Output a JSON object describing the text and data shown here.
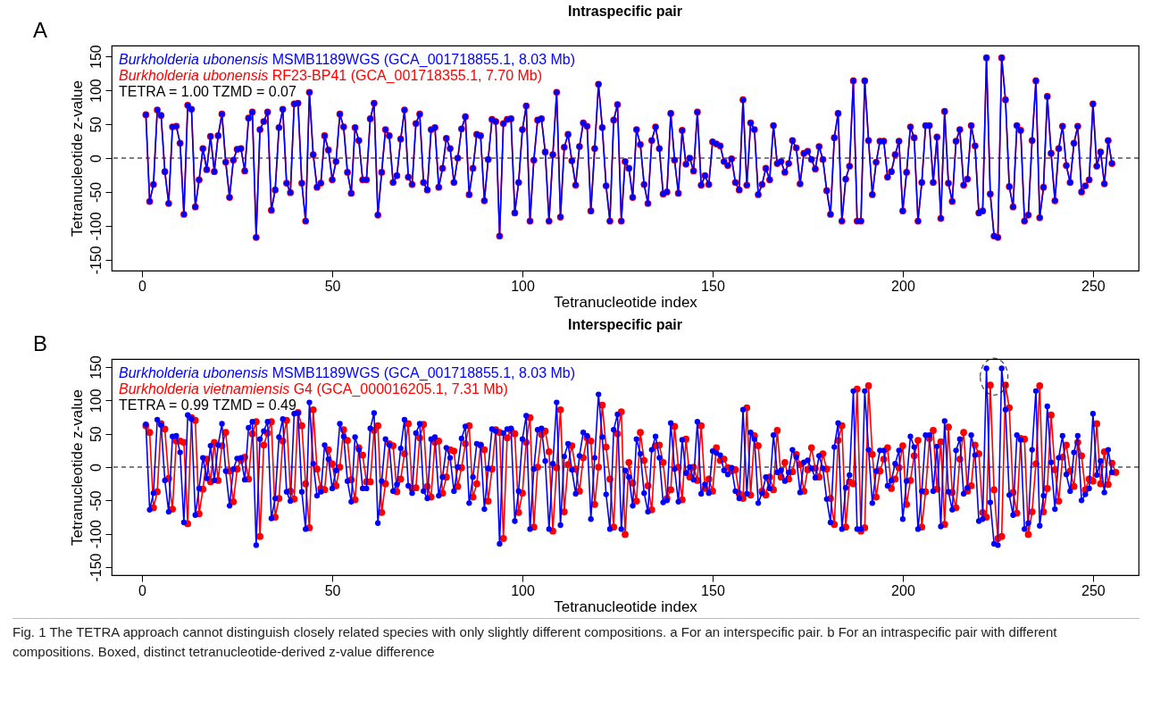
{
  "chart_data": [
    {
      "type": "line",
      "title": "Intraspecific pair",
      "xlabel": "Tetranucleotide index",
      "ylabel": "Tetranucleotide z-value",
      "xlim": [
        -8,
        262
      ],
      "ylim": [
        -166,
        166
      ],
      "xticks": [
        0,
        50,
        100,
        150,
        200,
        250
      ],
      "yticks": [
        -150,
        -100,
        -50,
        0,
        50,
        100,
        150
      ],
      "grid": false,
      "legend": "top left",
      "marker": "circle",
      "line_style": "solid",
      "annotations": [
        "A",
        "TETRA = 1.00    TZMD = 0.07"
      ],
      "ref_lines": [
        {
          "axis": "y",
          "value": 0,
          "color": "#000000",
          "line_style": "dashed"
        }
      ],
      "x": [
        1,
        2,
        3,
        4,
        5,
        6,
        7,
        8,
        9,
        10,
        11,
        12,
        13,
        14,
        15,
        16,
        17,
        18,
        19,
        20,
        21,
        22,
        23,
        24,
        25,
        26,
        27,
        28,
        29,
        30,
        31,
        32,
        33,
        34,
        35,
        36,
        37,
        38,
        39,
        40,
        41,
        42,
        43,
        44,
        45,
        46,
        47,
        48,
        49,
        50,
        51,
        52,
        53,
        54,
        55,
        56,
        57,
        58,
        59,
        60,
        61,
        62,
        63,
        64,
        65,
        66,
        67,
        68,
        69,
        70,
        71,
        72,
        73,
        74,
        75,
        76,
        77,
        78,
        79,
        80,
        81,
        82,
        83,
        84,
        85,
        86,
        87,
        88,
        89,
        90,
        91,
        92,
        93,
        94,
        95,
        96,
        97,
        98,
        99,
        100,
        101,
        102,
        103,
        104,
        105,
        106,
        107,
        108,
        109,
        110,
        111,
        112,
        113,
        114,
        115,
        116,
        117,
        118,
        119,
        120,
        121,
        122,
        123,
        124,
        125,
        126,
        127,
        128,
        129,
        130,
        131,
        132,
        133,
        134,
        135,
        136,
        137,
        138,
        139,
        140,
        141,
        142,
        143,
        144,
        145,
        146,
        147,
        148,
        149,
        150,
        151,
        152,
        153,
        154,
        155,
        156,
        157,
        158,
        159,
        160,
        161,
        162,
        163,
        164,
        165,
        166,
        167,
        168,
        169,
        170,
        171,
        172,
        173,
        174,
        175,
        176,
        177,
        178,
        179,
        180,
        181,
        182,
        183,
        184,
        185,
        186,
        187,
        188,
        189,
        190,
        191,
        192,
        193,
        194,
        195,
        196,
        197,
        198,
        199,
        200,
        201,
        202,
        203,
        204,
        205,
        206,
        207,
        208,
        209,
        210,
        211,
        212,
        213,
        214,
        215,
        216,
        217,
        218,
        219,
        220,
        221,
        222,
        223,
        224,
        225,
        226,
        227,
        228,
        229,
        230,
        231,
        232,
        233,
        234,
        235,
        236,
        237,
        238,
        239,
        240,
        241,
        242,
        243,
        244,
        245,
        246,
        247,
        248,
        249,
        250,
        251,
        252,
        253,
        254,
        255
      ],
      "series": [
        {
          "name": "Burkholderia ubonensis MSMB1189WGS (GCA_001718855.1, 8.03 Mb)",
          "color": "#0000ff",
          "values": [
            64,
            -64,
            -39,
            71,
            63,
            -20,
            -67,
            46,
            47,
            22,
            -83,
            78,
            72,
            -72,
            -32,
            14,
            -17,
            32,
            -20,
            33,
            65,
            -6,
            -58,
            -3,
            13,
            14,
            -19,
            59,
            68,
            -117,
            42,
            54,
            68,
            -77,
            -47,
            45,
            72,
            -37,
            -51,
            80,
            81,
            -37,
            -93,
            97,
            5,
            -43,
            -37,
            33,
            12,
            -32,
            -5,
            65,
            46,
            -21,
            -52,
            45,
            26,
            -32,
            -32,
            58,
            81,
            -84,
            -21,
            42,
            33,
            -36,
            -26,
            28,
            71,
            -28,
            -39,
            51,
            65,
            -36,
            -47,
            42,
            45,
            -43,
            -15,
            29,
            14,
            -36,
            0,
            43,
            61,
            -54,
            -15,
            35,
            33,
            -63,
            -2,
            57,
            54,
            -115,
            51,
            57,
            58,
            -81,
            -36,
            42,
            77,
            -93,
            -3,
            56,
            58,
            9,
            -93,
            5,
            97,
            -87,
            16,
            35,
            -4,
            -40,
            17,
            52,
            47,
            -78,
            14,
            109,
            45,
            -41,
            -93,
            56,
            79,
            -93,
            -5,
            -15,
            -58,
            42,
            20,
            -39,
            -67,
            26,
            46,
            14,
            -53,
            -50,
            66,
            -3,
            -52,
            41,
            -9,
            0,
            -19,
            68,
            -40,
            -26,
            -39,
            24,
            21,
            18,
            -5,
            -11,
            -1,
            -36,
            -47,
            86,
            -40,
            52,
            42,
            -54,
            -39,
            -15,
            -32,
            48,
            -8,
            -5,
            -21,
            -8,
            26,
            15,
            -38,
            7,
            10,
            -2,
            -16,
            17,
            -2,
            -48,
            -83,
            30,
            66,
            -93,
            -31,
            -12,
            114,
            -93,
            -93,
            114,
            26,
            -54,
            -6,
            25,
            25,
            -28,
            -20,
            5,
            25,
            -78,
            -21,
            46,
            30,
            -93,
            -36,
            48,
            48,
            -36,
            31,
            -89,
            69,
            -37,
            -64,
            25,
            42,
            -40,
            -31,
            48,
            18,
            -81,
            -78,
            148,
            -53,
            -115,
            -117,
            148,
            86,
            -42,
            -72,
            48,
            41,
            -93,
            -84,
            26,
            114,
            -88,
            -43,
            91,
            7,
            -63,
            14,
            47,
            -11,
            -36,
            22,
            47,
            -50,
            -41,
            -32,
            80,
            -12,
            9,
            -38,
            26,
            -8
          ]
        },
        {
          "name": "Burkholderia ubonensis RF23-BP41 (GCA_001718355.1, 7.70 Mb)",
          "color": "#ff0000",
          "values": [
            64,
            -64,
            -39,
            71,
            63,
            -20,
            -67,
            46,
            47,
            22,
            -83,
            78,
            72,
            -72,
            -32,
            14,
            -17,
            32,
            -20,
            33,
            65,
            -6,
            -58,
            -3,
            13,
            14,
            -19,
            59,
            68,
            -117,
            42,
            54,
            68,
            -77,
            -47,
            45,
            72,
            -37,
            -51,
            80,
            81,
            -37,
            -93,
            97,
            5,
            -43,
            -37,
            33,
            12,
            -32,
            -5,
            65,
            46,
            -21,
            -52,
            45,
            26,
            -32,
            -32,
            58,
            81,
            -84,
            -21,
            42,
            33,
            -36,
            -26,
            28,
            71,
            -28,
            -39,
            51,
            65,
            -36,
            -47,
            42,
            45,
            -43,
            -15,
            29,
            14,
            -36,
            0,
            43,
            61,
            -54,
            -15,
            35,
            33,
            -63,
            -2,
            57,
            54,
            -115,
            51,
            57,
            58,
            -81,
            -36,
            42,
            77,
            -93,
            -3,
            56,
            58,
            9,
            -93,
            5,
            97,
            -87,
            16,
            35,
            -4,
            -40,
            17,
            52,
            47,
            -78,
            14,
            109,
            45,
            -41,
            -93,
            56,
            79,
            -93,
            -5,
            -15,
            -58,
            42,
            20,
            -39,
            -67,
            26,
            46,
            14,
            -53,
            -50,
            66,
            -3,
            -52,
            41,
            -9,
            0,
            -19,
            68,
            -40,
            -26,
            -39,
            24,
            21,
            18,
            -5,
            -11,
            -1,
            -36,
            -47,
            86,
            -40,
            52,
            42,
            -54,
            -39,
            -15,
            -32,
            48,
            -8,
            -5,
            -21,
            -8,
            26,
            15,
            -38,
            7,
            10,
            -2,
            -16,
            17,
            -2,
            -48,
            -83,
            30,
            66,
            -93,
            -31,
            -12,
            114,
            -93,
            -93,
            114,
            26,
            -54,
            -6,
            25,
            25,
            -28,
            -20,
            5,
            25,
            -78,
            -21,
            46,
            30,
            -93,
            -36,
            48,
            48,
            -36,
            31,
            -89,
            69,
            -37,
            -64,
            25,
            42,
            -40,
            -31,
            48,
            18,
            -81,
            -78,
            148,
            -53,
            -115,
            -117,
            148,
            86,
            -42,
            -72,
            48,
            41,
            -93,
            -84,
            26,
            114,
            -88,
            -43,
            91,
            7,
            -63,
            14,
            47,
            -11,
            -36,
            22,
            47,
            -50,
            -41,
            -32,
            80,
            -12,
            9,
            -38,
            26,
            -8
          ]
        }
      ]
    },
    {
      "type": "line",
      "title": "Interspecific pair",
      "xlabel": "Tetranucleotide index",
      "ylabel": "Tetranucleotide z-value",
      "xlim": [
        -8,
        262
      ],
      "ylim": [
        -162,
        162
      ],
      "xticks": [
        0,
        50,
        100,
        150,
        200,
        250
      ],
      "yticks": [
        -150,
        -100,
        -50,
        0,
        50,
        100,
        150
      ],
      "grid": false,
      "legend": "top left",
      "marker": "circle",
      "line_style": "solid",
      "annotations": [
        "B",
        "TETRA = 0.99    TZMD = 0.49",
        "Fig. 1 The TETRA approach cannot distinguish closely related species with only slightly different compositions. a For an interspecific pair. b For an intraspecific pair with different compositions. Boxed, distinct tetranucleotide-derived z-value difference"
      ],
      "ref_lines": [
        {
          "axis": "y",
          "value": 0,
          "color": "#000000",
          "line_style": "dashed"
        }
      ],
      "x": [
        1,
        2,
        3,
        4,
        5,
        6,
        7,
        8,
        9,
        10,
        11,
        12,
        13,
        14,
        15,
        16,
        17,
        18,
        19,
        20,
        21,
        22,
        23,
        24,
        25,
        26,
        27,
        28,
        29,
        30,
        31,
        32,
        33,
        34,
        35,
        36,
        37,
        38,
        39,
        40,
        41,
        42,
        43,
        44,
        45,
        46,
        47,
        48,
        49,
        50,
        51,
        52,
        53,
        54,
        55,
        56,
        57,
        58,
        59,
        60,
        61,
        62,
        63,
        64,
        65,
        66,
        67,
        68,
        69,
        70,
        71,
        72,
        73,
        74,
        75,
        76,
        77,
        78,
        79,
        80,
        81,
        82,
        83,
        84,
        85,
        86,
        87,
        88,
        89,
        90,
        91,
        92,
        93,
        94,
        95,
        96,
        97,
        98,
        99,
        100,
        101,
        102,
        103,
        104,
        105,
        106,
        107,
        108,
        109,
        110,
        111,
        112,
        113,
        114,
        115,
        116,
        117,
        118,
        119,
        120,
        121,
        122,
        123,
        124,
        125,
        126,
        127,
        128,
        129,
        130,
        131,
        132,
        133,
        134,
        135,
        136,
        137,
        138,
        139,
        140,
        141,
        142,
        143,
        144,
        145,
        146,
        147,
        148,
        149,
        150,
        151,
        152,
        153,
        154,
        155,
        156,
        157,
        158,
        159,
        160,
        161,
        162,
        163,
        164,
        165,
        166,
        167,
        168,
        169,
        170,
        171,
        172,
        173,
        174,
        175,
        176,
        177,
        178,
        179,
        180,
        181,
        182,
        183,
        184,
        185,
        186,
        187,
        188,
        189,
        190,
        191,
        192,
        193,
        194,
        195,
        196,
        197,
        198,
        199,
        200,
        201,
        202,
        203,
        204,
        205,
        206,
        207,
        208,
        209,
        210,
        211,
        212,
        213,
        214,
        215,
        216,
        217,
        218,
        219,
        220,
        221,
        222,
        223,
        224,
        225,
        226,
        227,
        228,
        229,
        230,
        231,
        232,
        233,
        234,
        235,
        236,
        237,
        238,
        239,
        240,
        241,
        242,
        243,
        244,
        245,
        246,
        247,
        248,
        249,
        250,
        251,
        252,
        253,
        254,
        255
      ],
      "series": [
        {
          "name": "Burkholderia ubonensis MSMB1189WGS (GCA_001718855.1, 8.03 Mb)",
          "color": "#0000ff",
          "values": [
            64,
            -64,
            -39,
            71,
            63,
            -20,
            -67,
            46,
            47,
            22,
            -83,
            78,
            72,
            -72,
            -32,
            14,
            -17,
            32,
            -20,
            33,
            65,
            -6,
            -58,
            -3,
            13,
            14,
            -19,
            59,
            68,
            -117,
            42,
            54,
            68,
            -77,
            -47,
            45,
            72,
            -37,
            -51,
            80,
            81,
            -37,
            -93,
            97,
            5,
            -43,
            -37,
            33,
            12,
            -32,
            -5,
            65,
            46,
            -21,
            -52,
            45,
            26,
            -32,
            -32,
            58,
            81,
            -84,
            -21,
            42,
            33,
            -36,
            -26,
            28,
            71,
            -28,
            -39,
            51,
            65,
            -36,
            -47,
            42,
            45,
            -43,
            -15,
            29,
            14,
            -36,
            0,
            43,
            61,
            -54,
            -15,
            35,
            33,
            -63,
            -2,
            57,
            54,
            -115,
            51,
            57,
            58,
            -81,
            -36,
            42,
            77,
            -93,
            -3,
            56,
            58,
            9,
            -93,
            5,
            97,
            -87,
            16,
            35,
            -4,
            -40,
            17,
            52,
            47,
            -78,
            14,
            109,
            45,
            -41,
            -93,
            56,
            79,
            -93,
            -5,
            -15,
            -58,
            42,
            20,
            -39,
            -67,
            26,
            46,
            14,
            -53,
            -50,
            66,
            -3,
            -52,
            41,
            -9,
            0,
            -19,
            68,
            -40,
            -26,
            -39,
            24,
            21,
            18,
            -5,
            -11,
            -1,
            -36,
            -47,
            86,
            -40,
            52,
            42,
            -54,
            -39,
            -15,
            -32,
            48,
            -8,
            -5,
            -21,
            -8,
            26,
            15,
            -38,
            7,
            10,
            -2,
            -16,
            17,
            -2,
            -48,
            -83,
            30,
            66,
            -93,
            -31,
            -12,
            114,
            -93,
            -93,
            114,
            26,
            -54,
            -6,
            25,
            25,
            -28,
            -20,
            5,
            25,
            -78,
            -21,
            46,
            30,
            -93,
            -36,
            48,
            48,
            -36,
            31,
            -89,
            69,
            -37,
            -64,
            25,
            42,
            -40,
            -31,
            48,
            18,
            -81,
            -78,
            148,
            -53,
            -115,
            -117,
            148,
            86,
            -42,
            -72,
            48,
            41,
            -93,
            -84,
            26,
            114,
            -88,
            -43,
            91,
            7,
            -63,
            14,
            47,
            -11,
            -36,
            22,
            47,
            -50,
            -41,
            -32,
            80,
            -12,
            9,
            -38,
            26,
            -8
          ]
        },
        {
          "name": "Burkholderia vietnamiensis G4 (GCA_000016205.1, 7.31 Mb)",
          "color": "#ff0000",
          "x": [
            1,
            2,
            3,
            4,
            5,
            6,
            7,
            8,
            9,
            10,
            11,
            12,
            13,
            14,
            15,
            16,
            17,
            18,
            19,
            20,
            21,
            22,
            23,
            24,
            25,
            26,
            27,
            28,
            29,
            30,
            31,
            32,
            33,
            34,
            35,
            36,
            37,
            38,
            39,
            40,
            41,
            42,
            43,
            44,
            45,
            46,
            47,
            48,
            49,
            50,
            51,
            52,
            53,
            54,
            55,
            56,
            57,
            58,
            59,
            60,
            61,
            62,
            63,
            64,
            65,
            66,
            67,
            68,
            69,
            70,
            71,
            72,
            73,
            74,
            75,
            76,
            77,
            78,
            79,
            80,
            81,
            82,
            83,
            84,
            85,
            86,
            87,
            88,
            89,
            90,
            91,
            92,
            93,
            94,
            95,
            96,
            97,
            98,
            99,
            100,
            101,
            102,
            103,
            104,
            105,
            106,
            107,
            108,
            109,
            110,
            111,
            112,
            113,
            114,
            115,
            116,
            117,
            118,
            119,
            120,
            121,
            122,
            123,
            124,
            125,
            126,
            127,
            128,
            129,
            130,
            131,
            132,
            133,
            134,
            135,
            136,
            137,
            138,
            139,
            140,
            141,
            142,
            143,
            144,
            145,
            146,
            147,
            148,
            149,
            150,
            151,
            152,
            153,
            154,
            155,
            156,
            157,
            158,
            159,
            160,
            161,
            162,
            163,
            164,
            165,
            166,
            167,
            168,
            169,
            170,
            171,
            172,
            173,
            174,
            175,
            176,
            177,
            178,
            179,
            180,
            181,
            182,
            183,
            184,
            185,
            186,
            187,
            188,
            189,
            190,
            191,
            192,
            193,
            194,
            195,
            196,
            197,
            198,
            199,
            200,
            201,
            202,
            203,
            204,
            205,
            206,
            207,
            208,
            209,
            210,
            211,
            212,
            213,
            214,
            215,
            216,
            217,
            218,
            219,
            220,
            221,
            222,
            223,
            224,
            225,
            226,
            227,
            228,
            229,
            230,
            231,
            232,
            233,
            234,
            235,
            236,
            237,
            238,
            239,
            240,
            241,
            242,
            243,
            244,
            245,
            246,
            247,
            248,
            249,
            250,
            251,
            252,
            253,
            254,
            255,
            256
          ],
          "values": [
            62,
            52,
            -61,
            -37,
            65,
            57,
            -17,
            -63,
            39,
            39,
            37,
            -85,
            74,
            70,
            -70,
            -33,
            12,
            -22,
            37,
            -20,
            32,
            52,
            -6,
            -52,
            -3,
            10,
            15,
            -18,
            50,
            68,
            -104,
            33,
            51,
            68,
            -75,
            -47,
            39,
            70,
            -36,
            -48,
            82,
            62,
            -25,
            -91,
            86,
            -3,
            -32,
            -34,
            26,
            5,
            -28,
            0,
            56,
            40,
            -19,
            -49,
            29,
            18,
            -22,
            -22,
            55,
            62,
            -68,
            -25,
            35,
            32,
            -37,
            -18,
            20,
            65,
            -32,
            -31,
            44,
            64,
            -29,
            -45,
            37,
            39,
            -39,
            -15,
            26,
            24,
            -29,
            -1,
            35,
            62,
            -45,
            -25,
            33,
            26,
            -51,
            -3,
            56,
            52,
            -107,
            44,
            55,
            50,
            -68,
            -39,
            37,
            74,
            -90,
            0,
            49,
            54,
            23,
            -96,
            -1,
            86,
            -67,
            4,
            32,
            -3,
            -36,
            14,
            44,
            39,
            -56,
            0,
            93,
            30,
            -18,
            -90,
            50,
            83,
            -101,
            7,
            -24,
            -51,
            52,
            10,
            -28,
            -64,
            32,
            33,
            7,
            -47,
            -34,
            61,
            0,
            -49,
            42,
            -15,
            0,
            -20,
            62,
            -32,
            -18,
            -36,
            29,
            10,
            12,
            -1,
            -6,
            -4,
            -40,
            -47,
            89,
            -42,
            47,
            32,
            -36,
            -42,
            -15,
            -34,
            55,
            -15,
            7,
            -18,
            -7,
            19,
            4,
            -36,
            -4,
            29,
            -2,
            -15,
            20,
            -3,
            -47,
            -86,
            40,
            62,
            -90,
            -22,
            -25,
            117,
            -96,
            -91,
            122,
            19,
            -45,
            -6,
            12,
            29,
            -32,
            -18,
            -1,
            32,
            -56,
            -20,
            17,
            40,
            -90,
            -37,
            43,
            55,
            -33,
            38,
            -86,
            60,
            -38,
            -61,
            12,
            52,
            -36,
            -28,
            33,
            20,
            -68,
            -75,
            123,
            -34,
            -107,
            -104,
            123,
            89,
            -38,
            -69,
            43,
            42,
            -101,
            -67,
            5,
            122,
            -67,
            -32,
            78,
            -4,
            -51,
            15,
            33,
            -6,
            -29,
            37,
            17,
            -34,
            -18,
            -21,
            65,
            -25,
            23,
            -26,
            6,
            -8
          ]
        }
      ]
    }
  ]
}
